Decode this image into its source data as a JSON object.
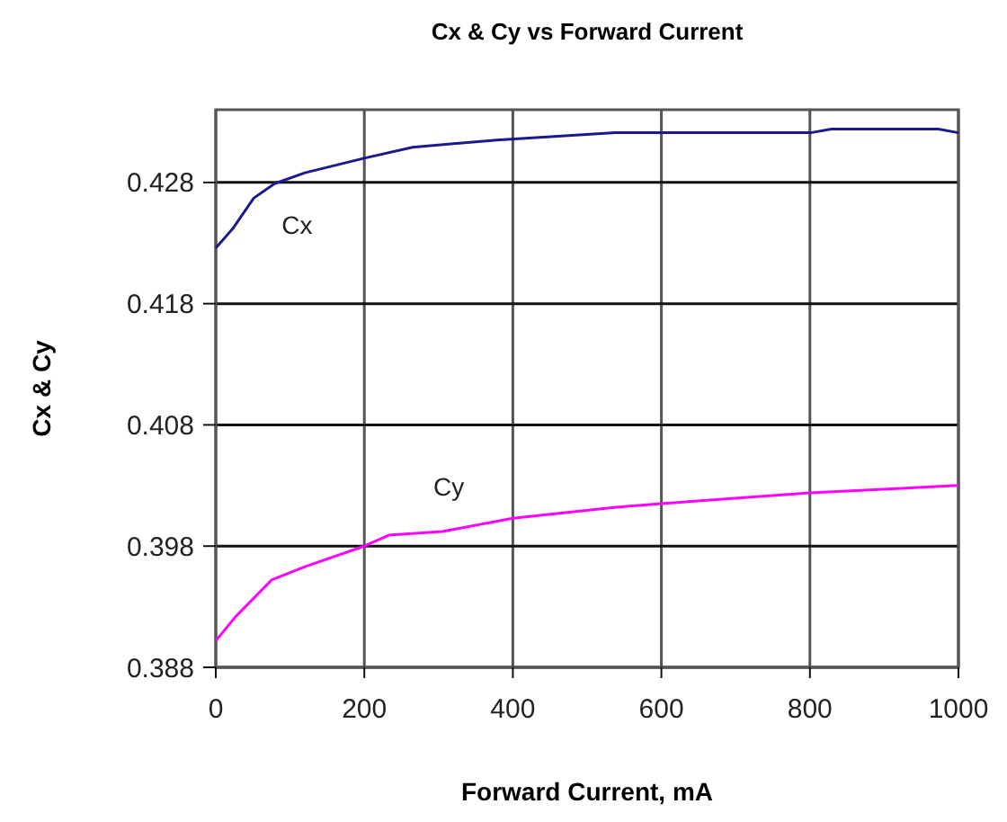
{
  "chart_data": {
    "type": "line",
    "title": "Cx & Cy vs Forward Current",
    "xlabel": "Forward Current, mA",
    "ylabel": "Cx & Cy",
    "xlim": [
      0,
      1000
    ],
    "xticks": [
      0,
      200,
      400,
      600,
      800,
      1000
    ],
    "ylim": [
      0.388,
      0.434
    ],
    "yticks": [
      0.388,
      0.398,
      0.408,
      0.418,
      0.428
    ],
    "grid": true,
    "marker": "none",
    "line_style": "solid",
    "series": [
      {
        "name": "Cx",
        "color": "#1a1a8c",
        "x": [
          0,
          23,
          51,
          79,
          120,
          200,
          265,
          378,
          538,
          801,
          829,
          973,
          1000
        ],
        "values": [
          0.4226,
          0.4242,
          0.4267,
          0.4279,
          0.4288,
          0.43,
          0.4309,
          0.4315,
          0.4321,
          0.4321,
          0.4324,
          0.4324,
          0.4321
        ]
      },
      {
        "name": "Cy",
        "color": "#ff00ff",
        "x": [
          0,
          27,
          75,
          120,
          200,
          233,
          305,
          400,
          539,
          600,
          800,
          1000
        ],
        "values": [
          0.3902,
          0.3922,
          0.3952,
          0.3963,
          0.398,
          0.3989,
          0.3992,
          0.4003,
          0.4012,
          0.4015,
          0.4024,
          0.403
        ]
      }
    ]
  }
}
